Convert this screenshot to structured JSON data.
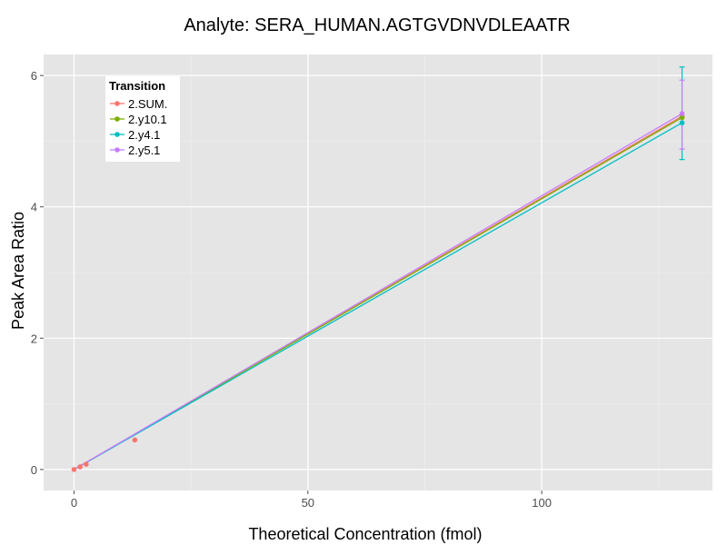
{
  "chart_data": {
    "type": "line",
    "title": "Analyte: SERA_HUMAN.AGTGVDNVDLEAATR",
    "xlabel": "Theoretical Concentration (fmol)",
    "ylabel": "Peak Area Ratio",
    "xlim": [
      -6.5,
      136.5
    ],
    "ylim": [
      -0.32,
      6.32
    ],
    "x_ticks": [
      0,
      50,
      100
    ],
    "y_ticks": [
      0,
      2,
      4,
      6
    ],
    "grid": true,
    "legend": {
      "title": "Transition",
      "position": "top-left"
    },
    "series": [
      {
        "name": "2.SUM.",
        "color": "#F8766D",
        "points": [
          [
            0,
            0.0
          ],
          [
            1.3,
            0.04
          ],
          [
            2.6,
            0.08
          ],
          [
            13,
            0.45
          ],
          [
            130,
            5.38
          ]
        ],
        "errors": [],
        "fit": [
          [
            0,
            0.0
          ],
          [
            130,
            5.38
          ]
        ]
      },
      {
        "name": "2.y10.1",
        "color": "#7CAE00",
        "points": [
          [
            130,
            5.36
          ]
        ],
        "errors": [],
        "fit": [
          [
            0,
            0.0
          ],
          [
            130,
            5.36
          ]
        ]
      },
      {
        "name": "2.y4.1",
        "color": "#00BFC4",
        "points": [
          [
            130,
            5.28
          ]
        ],
        "errors": [
          [
            130,
            4.72,
            6.13
          ]
        ],
        "fit": [
          [
            0,
            0.0
          ],
          [
            130,
            5.28
          ]
        ]
      },
      {
        "name": "2.y5.1",
        "color": "#C77CFF",
        "points": [
          [
            130,
            5.42
          ]
        ],
        "errors": [
          [
            130,
            4.88,
            5.93
          ]
        ],
        "fit": [
          [
            0,
            0.0
          ],
          [
            130,
            5.42
          ]
        ]
      }
    ]
  }
}
